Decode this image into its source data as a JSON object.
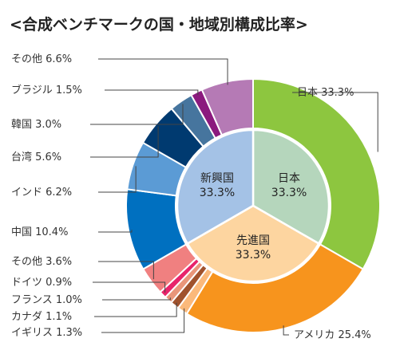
{
  "chart_data": {
    "type": "pie",
    "title": "<合成ベンチマークの国・地域別構成比率>",
    "outer_ring": [
      {
        "name": "日本",
        "value": 33.3,
        "color": "#8dc63f"
      },
      {
        "name": "アメリカ",
        "value": 25.4,
        "color": "#f7941d"
      },
      {
        "name": "イギリス",
        "value": 1.3,
        "color": "#fbb97b"
      },
      {
        "name": "カナダ",
        "value": 1.1,
        "color": "#a0522d"
      },
      {
        "name": "フランス",
        "value": 1.0,
        "color": "#e9967a"
      },
      {
        "name": "ドイツ",
        "value": 0.9,
        "color": "#e8246b"
      },
      {
        "name": "その他",
        "value": 3.6,
        "color": "#f08080"
      },
      {
        "name": "中国",
        "value": 10.4,
        "color": "#0070c0"
      },
      {
        "name": "インド",
        "value": 6.2,
        "color": "#5b9bd5"
      },
      {
        "name": "台湾",
        "value": 5.6,
        "color": "#003a70"
      },
      {
        "name": "韓国",
        "value": 3.0,
        "color": "#46759e"
      },
      {
        "name": "ブラジル",
        "value": 1.5,
        "color": "#8b1a7e"
      },
      {
        "name": "その他",
        "value": 6.6,
        "color": "#b57ab5"
      }
    ],
    "inner_ring": [
      {
        "name": "日本",
        "value": 33.3,
        "color": "#b5d6bc"
      },
      {
        "name": "先進国",
        "value": 33.3,
        "color": "#fdd5a0"
      },
      {
        "name": "新興国",
        "value": 33.3,
        "color": "#a4c2e6"
      }
    ],
    "labels": {
      "outer": [
        "日本 33.3%",
        "アメリカ 25.4%",
        "イギリス 1.3%",
        "カナダ 1.1%",
        "フランス 1.0%",
        "ドイツ 0.9%",
        "その他 3.6%",
        "中国 10.4%",
        "インド 6.2%",
        "台湾 5.6%",
        "韓国 3.0%",
        "ブラジル 1.5%",
        "その他 6.6%"
      ],
      "inner_names": [
        "日本",
        "先進国",
        "新興国"
      ],
      "inner_values": [
        "33.3%",
        "33.3%",
        "33.3%"
      ]
    }
  }
}
